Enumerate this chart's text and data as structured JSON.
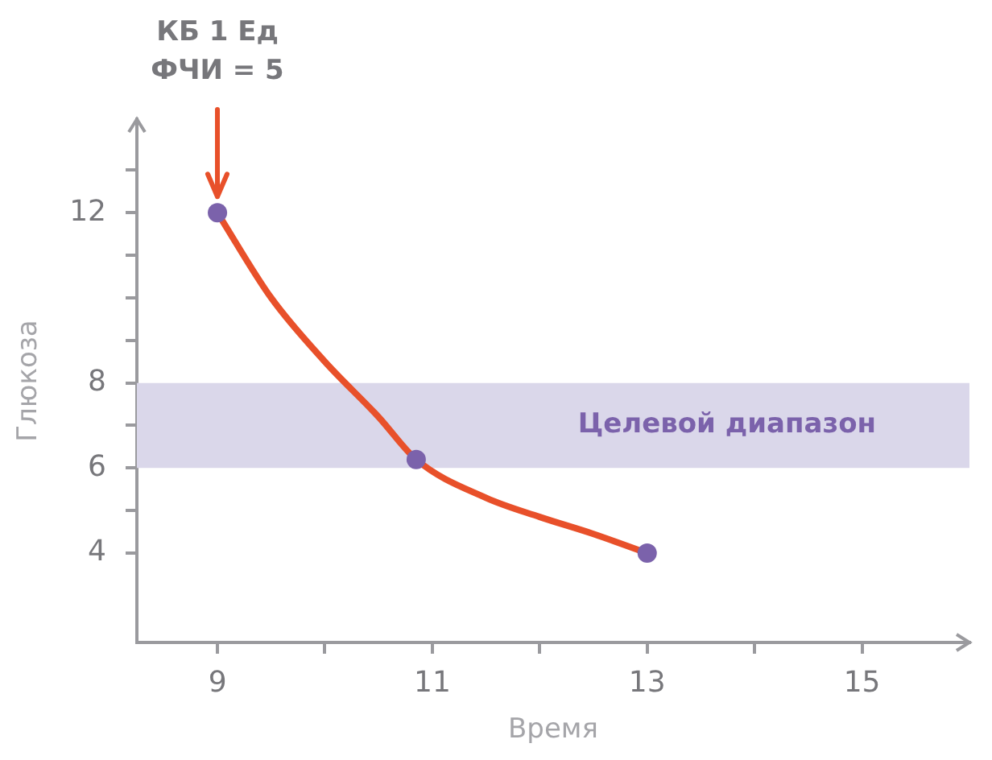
{
  "chart_data": {
    "type": "line",
    "xlabel": "Время",
    "ylabel": "Глюкоза",
    "xlim": [
      8.25,
      16
    ],
    "ylim": [
      1.9,
      14.2
    ],
    "xticks": [
      9,
      {
        "value": 10,
        "label": null
      },
      11,
      {
        "value": 12,
        "label": null
      },
      13,
      {
        "value": 14,
        "label": null
      },
      15
    ],
    "yticks": [
      4,
      {
        "value": 5,
        "label": null
      },
      6,
      {
        "value": 7,
        "label": null
      },
      8,
      {
        "value": 9,
        "label": null
      },
      {
        "value": 10,
        "label": null
      },
      {
        "value": 11,
        "label": null
      },
      12,
      {
        "value": 13,
        "label": null
      }
    ],
    "grid": false,
    "legend": false,
    "series": [
      {
        "type": "line",
        "marker": "none",
        "color": "#e8502a",
        "x": [
          9,
          9.5,
          10,
          10.5,
          10.85,
          11.5,
          12,
          12.5,
          13
        ],
        "values": [
          12,
          10.0,
          8.5,
          7.2,
          6.2,
          5.3,
          4.85,
          4.45,
          4
        ]
      },
      {
        "type": "scatter",
        "marker": "circle",
        "color": "#7b62ab",
        "x": [
          9,
          10.85,
          13
        ],
        "values": [
          12,
          6.2,
          4
        ]
      }
    ],
    "bands": [
      {
        "axis": "y",
        "from": 6,
        "to": 8,
        "label": "Целевой диапазон",
        "color": "#dad7ea"
      }
    ],
    "annotations": [
      "КБ 1 Ед\nФЧИ = 5"
    ]
  }
}
